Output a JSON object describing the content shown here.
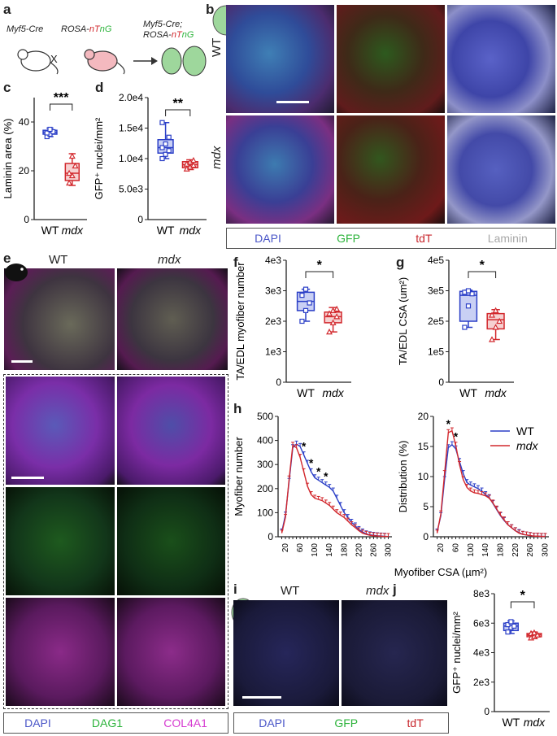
{
  "panels": {
    "a": "a",
    "b": "b",
    "c": "c",
    "d": "d",
    "e": "e",
    "f": "f",
    "g": "g",
    "h": "h",
    "i": "i",
    "j": "j"
  },
  "schematic_a": {
    "strain1": "Myf5-Cre",
    "cross": "X",
    "strain2_parts": [
      "ROSA-",
      "n",
      "T",
      "n",
      "G"
    ],
    "offspring_line1": "Myf5-Cre;",
    "offspring_line2_parts": [
      "ROSA-",
      "n",
      "T",
      "n",
      "G"
    ]
  },
  "panel_b": {
    "row_labels": [
      "WT",
      "mdx"
    ],
    "legend": [
      {
        "label": "DAPI",
        "color": "#4a56c8"
      },
      {
        "label": "GFP",
        "color": "#2bb33a"
      },
      {
        "label": "tdT",
        "color": "#c8262c"
      },
      {
        "label": "Laminin",
        "color": "#bdbdbd"
      }
    ]
  },
  "panel_e": {
    "col_labels": [
      "WT",
      "mdx"
    ],
    "legend": [
      {
        "label": "DAPI",
        "color": "#4a56c8"
      },
      {
        "label": "DAG1",
        "color": "#2bb33a"
      },
      {
        "label": "COL4A1",
        "color": "#d63bd0"
      }
    ]
  },
  "panel_i": {
    "col_labels": [
      "WT",
      "mdx"
    ],
    "legend": [
      {
        "label": "DAPI",
        "color": "#4a56c8"
      },
      {
        "label": "GFP",
        "color": "#2bb33a"
      },
      {
        "label": "tdT",
        "color": "#c8262c"
      }
    ]
  },
  "chart_data": [
    {
      "id": "c",
      "type": "box",
      "ylabel": "Laminin area (%)",
      "ylim": [
        0,
        50
      ],
      "yticks": [
        "0",
        "20",
        "40"
      ],
      "ytick_vals": [
        0,
        20,
        40
      ],
      "categories": [
        "WT",
        "mdx"
      ],
      "series": [
        {
          "name": "WT",
          "color": "#2b3fc7",
          "points": [
            34,
            35,
            36,
            35.5,
            37
          ],
          "box": [
            34,
            35,
            35.8,
            36.6,
            37.5
          ]
        },
        {
          "name": "mdx",
          "color": "#d2282d",
          "points": [
            15,
            18,
            22,
            19,
            26
          ],
          "box": [
            14,
            16,
            19,
            23,
            27
          ]
        }
      ],
      "significance": "***"
    },
    {
      "id": "d",
      "type": "box",
      "ylabel": "GFP⁺ nuclei/mm²",
      "ylim": [
        0,
        20000
      ],
      "yticks": [
        "0",
        "5.0e3",
        "1.0e4",
        "1.5e4",
        "2.0e4"
      ],
      "ytick_vals": [
        0,
        5000,
        10000,
        15000,
        20000
      ],
      "categories": [
        "WT",
        "mdx"
      ],
      "series": [
        {
          "name": "WT",
          "color": "#2b3fc7",
          "points": [
            10000,
            10700,
            11300,
            11800,
            12400,
            13500,
            15900
          ],
          "box": [
            10000,
            10900,
            11800,
            13100,
            15900
          ]
        },
        {
          "name": "mdx",
          "color": "#d2282d",
          "points": [
            8300,
            8600,
            8900,
            9100,
            9400,
            9700
          ],
          "box": [
            8200,
            8500,
            9000,
            9500,
            9800
          ]
        }
      ],
      "significance": "**"
    },
    {
      "id": "f",
      "type": "box",
      "ylabel": "TA/EDL myofiber number",
      "ylim": [
        0,
        4000
      ],
      "yticks": [
        "0",
        "1e3",
        "2e3",
        "3e3",
        "4e3"
      ],
      "ytick_vals": [
        0,
        1000,
        2000,
        3000,
        4000
      ],
      "categories": [
        "WT",
        "mdx"
      ],
      "series": [
        {
          "name": "WT",
          "color": "#2b3fc7",
          "points": [
            2000,
            2350,
            2600,
            2850,
            3050
          ],
          "box": [
            2000,
            2350,
            2650,
            2950,
            3050
          ]
        },
        {
          "name": "mdx",
          "color": "#d2282d",
          "points": [
            1650,
            1950,
            2150,
            2250,
            2350,
            2400
          ],
          "box": [
            1650,
            1950,
            2150,
            2300,
            2450
          ]
        }
      ],
      "significance": "*"
    },
    {
      "id": "g",
      "type": "box",
      "ylabel": "TA/EDL CSA (um²)",
      "ylim": [
        0,
        400000
      ],
      "yticks": [
        "0",
        "1e5",
        "2e5",
        "3e5",
        "4e5"
      ],
      "ytick_vals": [
        0,
        100000,
        200000,
        300000,
        400000
      ],
      "categories": [
        "WT",
        "mdx"
      ],
      "series": [
        {
          "name": "WT",
          "color": "#2b3fc7",
          "points": [
            180000,
            250000,
            290000,
            295000,
            300000
          ],
          "box": [
            180000,
            200000,
            285000,
            298000,
            302000
          ]
        },
        {
          "name": "mdx",
          "color": "#d2282d",
          "points": [
            140000,
            180000,
            200000,
            220000,
            235000
          ],
          "box": [
            140000,
            175000,
            205000,
            225000,
            238000
          ]
        }
      ],
      "significance": "*"
    },
    {
      "id": "h1",
      "type": "line",
      "xlabel": "Myofiber CSA (µm²)",
      "ylabel": "Myofiber number",
      "ylim": [
        0,
        500
      ],
      "yticks": [
        "0",
        "100",
        "200",
        "300",
        "400",
        "500"
      ],
      "ytick_vals": [
        0,
        100,
        200,
        300,
        400,
        500
      ],
      "x": [
        10,
        20,
        30,
        40,
        50,
        60,
        70,
        80,
        90,
        100,
        110,
        120,
        130,
        140,
        150,
        160,
        170,
        180,
        190,
        200,
        210,
        220,
        230,
        240,
        250,
        260,
        270,
        280,
        290,
        300
      ],
      "xticks": [
        "20",
        "60",
        "100",
        "140",
        "180",
        "220",
        "260",
        "300"
      ],
      "xtick_vals": [
        20,
        60,
        100,
        140,
        180,
        220,
        260,
        300
      ],
      "series": [
        {
          "name": "WT",
          "color": "#2b3fc7",
          "values": [
            20,
            90,
            230,
            370,
            385,
            375,
            340,
            305,
            270,
            245,
            235,
            225,
            215,
            205,
            190,
            160,
            130,
            100,
            80,
            60,
            45,
            30,
            20,
            12,
            8,
            6,
            4,
            3,
            2,
            1
          ]
        },
        {
          "name": "mdx",
          "color": "#d2282d",
          "values": [
            15,
            80,
            240,
            380,
            370,
            330,
            270,
            210,
            175,
            160,
            155,
            150,
            140,
            130,
            115,
            100,
            90,
            80,
            65,
            50,
            38,
            25,
            15,
            10,
            6,
            4,
            3,
            2,
            1,
            1
          ]
        }
      ],
      "star_x": [
        70,
        90,
        110,
        130
      ]
    },
    {
      "id": "h2",
      "type": "line",
      "ylabel": "Distribution (%)",
      "ylim": [
        0,
        20
      ],
      "yticks": [
        "0",
        "5",
        "10",
        "15",
        "20"
      ],
      "ytick_vals": [
        0,
        5,
        10,
        15,
        20
      ],
      "x": [
        10,
        20,
        30,
        40,
        50,
        60,
        70,
        80,
        90,
        100,
        110,
        120,
        130,
        140,
        150,
        160,
        170,
        180,
        190,
        200,
        210,
        220,
        230,
        240,
        250,
        260,
        270,
        280,
        290,
        300
      ],
      "xticks": [
        "20",
        "60",
        "100",
        "140",
        "180",
        "220",
        "260",
        "300"
      ],
      "xtick_vals": [
        20,
        60,
        100,
        140,
        180,
        220,
        260,
        300
      ],
      "series": [
        {
          "name": "WT",
          "color": "#2b3fc7",
          "values": [
            0.8,
            3.5,
            9.5,
            14.8,
            15.3,
            14.6,
            12.5,
            10.5,
            9.0,
            8.6,
            8.3,
            8.0,
            7.6,
            7.0,
            6.5,
            5.5,
            4.5,
            3.5,
            2.7,
            2.0,
            1.5,
            1.0,
            0.7,
            0.4,
            0.3,
            0.2,
            0.1,
            0.1,
            0.05,
            0.05
          ]
        },
        {
          "name": "mdx",
          "color": "#d2282d",
          "values": [
            0.6,
            3.8,
            10.5,
            17.3,
            17.6,
            15.2,
            12.0,
            9.5,
            8.2,
            7.6,
            7.3,
            7.2,
            7.0,
            6.8,
            6.4,
            5.6,
            4.6,
            3.6,
            2.8,
            2.0,
            1.5,
            1.0,
            0.6,
            0.4,
            0.3,
            0.2,
            0.1,
            0.1,
            0.05,
            0.05
          ]
        }
      ],
      "legend": [
        "WT",
        "mdx"
      ],
      "star_x": [
        40,
        60
      ]
    },
    {
      "id": "j",
      "type": "box",
      "ylabel": "GFP⁺ nuclei/mm²",
      "ylim": [
        0,
        8000
      ],
      "yticks": [
        "0",
        "2e3",
        "4e3",
        "6e3",
        "8e3"
      ],
      "ytick_vals": [
        0,
        2000,
        4000,
        6000,
        8000
      ],
      "categories": [
        "WT",
        "mdx"
      ],
      "series": [
        {
          "name": "WT",
          "color": "#2b3fc7",
          "points": [
            5400,
            5700,
            5800,
            5900,
            6100
          ],
          "box": [
            5300,
            5500,
            5800,
            6000,
            6150
          ]
        },
        {
          "name": "mdx",
          "color": "#d2282d",
          "points": [
            5000,
            5100,
            5200,
            5300,
            5350
          ],
          "box": [
            4950,
            5080,
            5200,
            5300,
            5400
          ]
        }
      ],
      "significance": "*"
    }
  ]
}
